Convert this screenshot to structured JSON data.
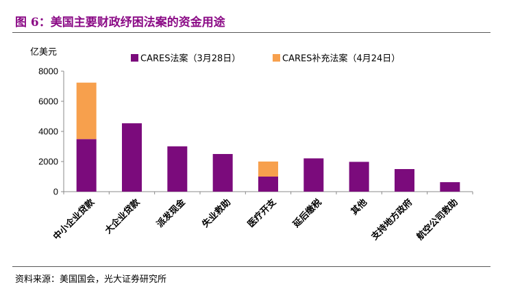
{
  "title": "图 6：美国主要财政纾困法案的资金用途",
  "source": "资料来源：美国国会，光大证券研究所",
  "colors": {
    "title": "#8b0b86",
    "series1": "#7b0b7c",
    "series2": "#f7a04d"
  },
  "chart_data": {
    "type": "bar",
    "stacked": true,
    "unit_label": "亿美元",
    "ylim": [
      0,
      8000
    ],
    "yticks": [
      0,
      2000,
      4000,
      6000,
      8000
    ],
    "grid": false,
    "legend_position": "top",
    "categories": [
      "中小企业贷款",
      "大企业贷款",
      "派发现金",
      "失业救助",
      "医疗开支",
      "延后缴税",
      "其他",
      "支持地方政府",
      "航空公司救助"
    ],
    "series": [
      {
        "name": "CARES法案（3月28日）",
        "color": "#7b0b7c",
        "values": [
          3490,
          4540,
          3010,
          2500,
          1000,
          2210,
          1980,
          1500,
          630
        ]
      },
      {
        "name": "CARES补充法案（4月24日）",
        "color": "#f7a04d",
        "values": [
          3750,
          0,
          0,
          0,
          1000,
          0,
          0,
          0,
          0
        ]
      }
    ]
  }
}
